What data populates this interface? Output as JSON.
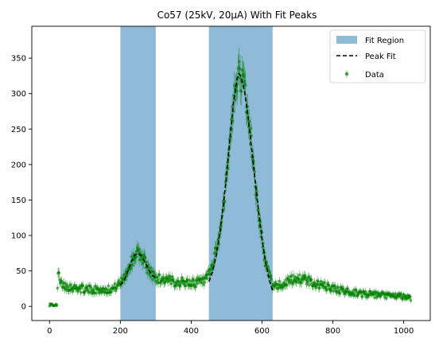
{
  "chart_data": {
    "type": "scatter",
    "title": "Co57 (25kV, 20μA) With Fit Peaks",
    "xlabel": "",
    "ylabel": "",
    "xlim": [
      -50,
      1075
    ],
    "ylim": [
      -20,
      395
    ],
    "x_ticks": [
      0,
      200,
      400,
      600,
      800,
      1000
    ],
    "y_ticks": [
      0,
      50,
      100,
      150,
      200,
      250,
      300,
      350
    ],
    "grid": false,
    "legend_position": "top-right",
    "legend": [
      "Fit Region",
      "Peak Fit",
      "Data"
    ],
    "colors": {
      "fit_region": "#8fbbd9",
      "peak_fit": "#000000",
      "data": "#008000"
    },
    "fit_regions": [
      {
        "name": "Fit Region",
        "x_start": 200,
        "x_end": 300
      },
      {
        "name": "Fit Region",
        "x_start": 450,
        "x_end": 630
      }
    ],
    "series": [
      {
        "name": "Data",
        "kind": "errorbar-scatter",
        "baseline_points": [
          [
            0,
            1
          ],
          [
            20,
            2
          ],
          [
            25,
            50
          ],
          [
            30,
            32
          ],
          [
            50,
            28
          ],
          [
            100,
            24
          ],
          [
            150,
            23
          ],
          [
            180,
            25
          ],
          [
            200,
            33
          ],
          [
            220,
            50
          ],
          [
            240,
            72
          ],
          [
            250,
            75
          ],
          [
            265,
            68
          ],
          [
            280,
            50
          ],
          [
            300,
            40
          ],
          [
            350,
            35
          ],
          [
            400,
            33
          ],
          [
            440,
            35
          ],
          [
            460,
            55
          ],
          [
            480,
            100
          ],
          [
            500,
            180
          ],
          [
            520,
            290
          ],
          [
            535,
            330
          ],
          [
            550,
            310
          ],
          [
            570,
            230
          ],
          [
            590,
            130
          ],
          [
            610,
            60
          ],
          [
            630,
            30
          ],
          [
            650,
            30
          ],
          [
            700,
            40
          ],
          [
            720,
            38
          ],
          [
            750,
            32
          ],
          [
            800,
            25
          ],
          [
            850,
            20
          ],
          [
            900,
            17
          ],
          [
            950,
            15
          ],
          [
            1000,
            14
          ],
          [
            1020,
            12
          ]
        ]
      },
      {
        "name": "Peak Fit",
        "kind": "dashed-line",
        "points": [
          [
            200,
            30
          ],
          [
            210,
            36
          ],
          [
            220,
            48
          ],
          [
            230,
            62
          ],
          [
            240,
            72
          ],
          [
            250,
            75
          ],
          [
            260,
            71
          ],
          [
            270,
            62
          ],
          [
            280,
            51
          ],
          [
            290,
            44
          ],
          [
            300,
            40
          ],
          [
            450,
            35
          ],
          [
            460,
            48
          ],
          [
            470,
            70
          ],
          [
            480,
            100
          ],
          [
            490,
            140
          ],
          [
            500,
            185
          ],
          [
            510,
            240
          ],
          [
            520,
            290
          ],
          [
            530,
            322
          ],
          [
            535,
            328
          ],
          [
            540,
            325
          ],
          [
            550,
            305
          ],
          [
            560,
            270
          ],
          [
            570,
            225
          ],
          [
            580,
            180
          ],
          [
            590,
            135
          ],
          [
            600,
            95
          ],
          [
            610,
            62
          ],
          [
            620,
            38
          ],
          [
            630,
            22
          ]
        ]
      }
    ]
  }
}
